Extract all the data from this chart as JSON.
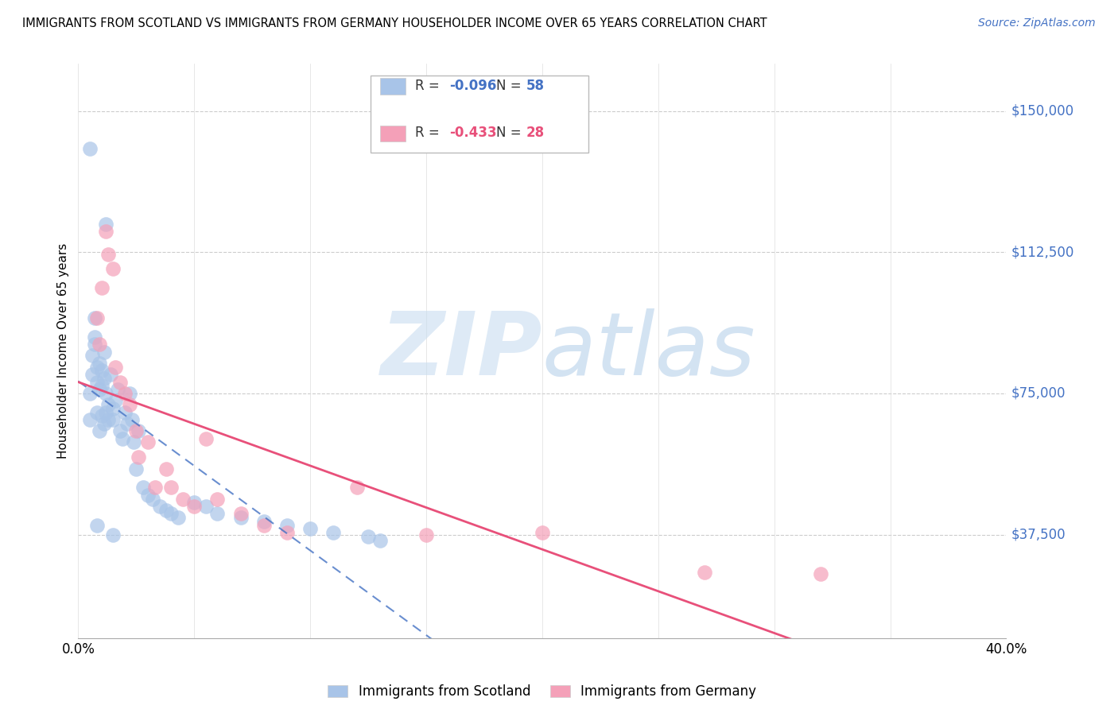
{
  "title": "IMMIGRANTS FROM SCOTLAND VS IMMIGRANTS FROM GERMANY HOUSEHOLDER INCOME OVER 65 YEARS CORRELATION CHART",
  "source": "Source: ZipAtlas.com",
  "ylabel": "Householder Income Over 65 years",
  "xlim": [
    0.0,
    0.4
  ],
  "ylim": [
    10000,
    162500
  ],
  "yticks": [
    37500,
    75000,
    112500,
    150000
  ],
  "ytick_labels": [
    "$37,500",
    "$75,000",
    "$112,500",
    "$150,000"
  ],
  "legend_scotland_R": "-0.096",
  "legend_scotland_N": "58",
  "legend_germany_R": "-0.433",
  "legend_germany_N": "28",
  "scotland_color": "#a8c4e8",
  "germany_color": "#f4a0b8",
  "scotland_line_color": "#4472c4",
  "germany_line_color": "#e8507a",
  "scotland_x": [
    0.005,
    0.005,
    0.006,
    0.006,
    0.007,
    0.007,
    0.007,
    0.008,
    0.008,
    0.008,
    0.009,
    0.009,
    0.009,
    0.01,
    0.01,
    0.01,
    0.011,
    0.011,
    0.011,
    0.012,
    0.012,
    0.013,
    0.013,
    0.014,
    0.015,
    0.015,
    0.016,
    0.017,
    0.018,
    0.019,
    0.02,
    0.021,
    0.022,
    0.023,
    0.024,
    0.025,
    0.026,
    0.028,
    0.03,
    0.032,
    0.035,
    0.038,
    0.04,
    0.043,
    0.05,
    0.055,
    0.06,
    0.07,
    0.08,
    0.09,
    0.1,
    0.11,
    0.125,
    0.13,
    0.005,
    0.012,
    0.008,
    0.015
  ],
  "scotland_y": [
    75000,
    68000,
    80000,
    85000,
    90000,
    95000,
    88000,
    78000,
    82000,
    70000,
    76000,
    83000,
    65000,
    77000,
    81000,
    69000,
    79000,
    86000,
    67000,
    75000,
    70000,
    72000,
    68000,
    80000,
    71000,
    68000,
    73000,
    76000,
    65000,
    63000,
    70000,
    67000,
    75000,
    68000,
    62000,
    55000,
    65000,
    50000,
    48000,
    47000,
    45000,
    44000,
    43000,
    42000,
    46000,
    45000,
    43000,
    42000,
    41000,
    40000,
    39000,
    38000,
    37000,
    36000,
    140000,
    120000,
    40000,
    37500
  ],
  "germany_x": [
    0.008,
    0.009,
    0.01,
    0.012,
    0.013,
    0.015,
    0.016,
    0.018,
    0.02,
    0.022,
    0.025,
    0.026,
    0.03,
    0.033,
    0.038,
    0.04,
    0.045,
    0.05,
    0.055,
    0.06,
    0.07,
    0.08,
    0.09,
    0.12,
    0.15,
    0.2,
    0.27,
    0.32
  ],
  "germany_y": [
    95000,
    88000,
    103000,
    118000,
    112000,
    108000,
    82000,
    78000,
    75000,
    72000,
    65000,
    58000,
    62000,
    50000,
    55000,
    50000,
    47000,
    45000,
    63000,
    47000,
    43000,
    40000,
    38000,
    50000,
    37500,
    38000,
    27500,
    27000
  ]
}
